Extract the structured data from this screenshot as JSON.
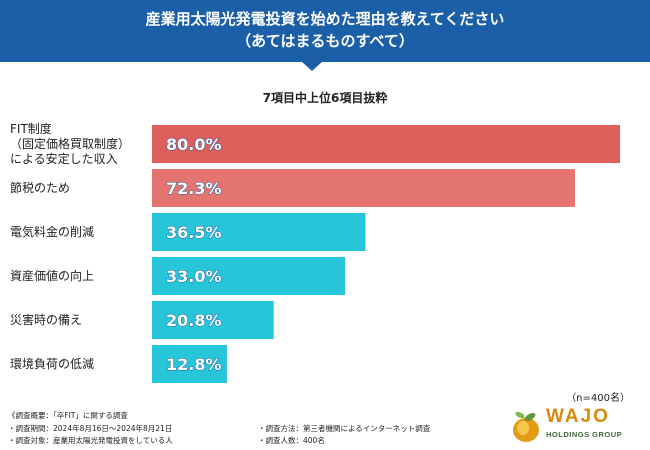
{
  "header": {
    "title_line1": "産業用太陽光発電投資を始めた理由を教えてください",
    "title_line2": "（あてはまるものすべて）"
  },
  "chart_data": {
    "type": "bar",
    "orientation": "horizontal",
    "title": "7項目中上位6項目抜粋",
    "categories": [
      [
        "FIT制度",
        "（固定価格買取制度）",
        "による安定した収入"
      ],
      [
        "節税のため"
      ],
      [
        "電気料金の削減"
      ],
      [
        "資産価値の向上"
      ],
      [
        "災害時の備え"
      ],
      [
        "環境負荷の低減"
      ]
    ],
    "values": [
      80.0,
      72.3,
      36.5,
      33.0,
      20.8,
      12.8
    ],
    "value_labels": [
      "80.0%",
      "72.3%",
      "36.5%",
      "33.0%",
      "20.8%",
      "12.8%"
    ],
    "colors": [
      "#dc5f5c",
      "#e3746f",
      "#27c5d8",
      "#27c5d8",
      "#27c5d8",
      "#27c5d8"
    ],
    "unit": "%",
    "xlim": [
      0,
      100
    ]
  },
  "sample_size": "（n=400名）",
  "footer": {
    "overview": "《調査概要：「卒FIT」に関する調査",
    "period": "・調査期間：2024年8月16日〜2024年8月21日",
    "target": "・調査対象：産業用太陽光発電投資をしている人",
    "method": "・調査方法：第三者機関によるインターネット調査",
    "count": "・調査人数：400名"
  },
  "logo": {
    "name": "WAJO",
    "sub": "HOLDINGS GROUP"
  }
}
